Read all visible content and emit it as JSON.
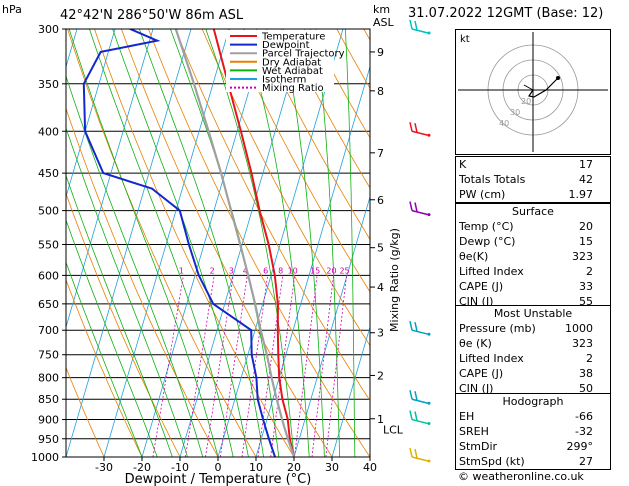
{
  "header": {
    "location": "42°42'N  286°50'W  86m  ASL",
    "datetime": "31.07.2022  12GMT  (Base: 12)",
    "hpa_unit": "hPa",
    "km_unit": "km",
    "asl_unit": "ASL"
  },
  "credit": "© weatheronline.co.uk",
  "hodograph": {
    "label": "kt",
    "ring_labels": [
      "20",
      "30",
      "40"
    ]
  },
  "indices": {
    "rows": [
      {
        "k": "K",
        "v": "17"
      },
      {
        "k": "Totals Totals",
        "v": "42"
      },
      {
        "k": "PW (cm)",
        "v": "1.97"
      }
    ]
  },
  "surface": {
    "title": "Surface",
    "rows": [
      {
        "k": "Temp (°C)",
        "v": "20"
      },
      {
        "k": "Dewp (°C)",
        "v": "15"
      },
      {
        "k": "θe(K)",
        "v": "323"
      },
      {
        "k": "Lifted Index",
        "v": "2"
      },
      {
        "k": "CAPE (J)",
        "v": "33"
      },
      {
        "k": "CIN (J)",
        "v": "55"
      }
    ]
  },
  "most_unstable": {
    "title": "Most Unstable",
    "rows": [
      {
        "k": "Pressure (mb)",
        "v": "1000"
      },
      {
        "k": "θe (K)",
        "v": "323"
      },
      {
        "k": "Lifted Index",
        "v": "2"
      },
      {
        "k": "CAPE (J)",
        "v": "38"
      },
      {
        "k": "CIN (J)",
        "v": "50"
      }
    ]
  },
  "hodograph_table": {
    "title": "Hodograph",
    "rows": [
      {
        "k": "EH",
        "v": "-66"
      },
      {
        "k": "SREH",
        "v": "-32"
      },
      {
        "k": "StmDir",
        "v": "299°"
      },
      {
        "k": "StmSpd (kt)",
        "v": "27"
      }
    ]
  },
  "chart_data": {
    "type": "line",
    "title": "",
    "xlabel": "Dewpoint / Temperature (°C)",
    "ylabel": "",
    "right_axis_label": "Mixing Ratio (g/kg)",
    "xlim": [
      -40,
      40
    ],
    "x_ticks": [
      -30,
      -20,
      -10,
      0,
      10,
      20,
      30,
      40
    ],
    "pressure_levels": [
      300,
      350,
      400,
      450,
      500,
      550,
      600,
      650,
      700,
      750,
      800,
      850,
      900,
      950,
      1000
    ],
    "km_ticks": [
      {
        "km": "9",
        "p": 320
      },
      {
        "km": "8",
        "p": 357
      },
      {
        "km": "7",
        "p": 425
      },
      {
        "km": "6",
        "p": 485
      },
      {
        "km": "5",
        "p": 555
      },
      {
        "km": "4",
        "p": 620
      },
      {
        "km": "3",
        "p": 705
      },
      {
        "km": "2",
        "p": 795
      },
      {
        "km": "1",
        "p": 898
      }
    ],
    "lcl_label": "LCL",
    "lcl_p": 925,
    "mixing_ratio_labels": [
      "1",
      "2",
      "3",
      "4",
      "6",
      "8",
      "10",
      "15",
      "20",
      "25"
    ],
    "legend": [
      {
        "name": "Temperature",
        "color": "#e8141c"
      },
      {
        "name": "Dewpoint",
        "color": "#1426d0"
      },
      {
        "name": "Parcel Trajectory",
        "color": "#a0a0a0"
      },
      {
        "name": "Dry Adiabat",
        "color": "#e88000"
      },
      {
        "name": "Wet Adiabat",
        "color": "#10b010"
      },
      {
        "name": "Isotherm",
        "color": "#20a0e0"
      },
      {
        "name": "Mixing Ratio",
        "color": "#d000b0"
      }
    ],
    "series": [
      {
        "name": "Temperature",
        "points": [
          [
            1000,
            20
          ],
          [
            950,
            17.5
          ],
          [
            900,
            15.5
          ],
          [
            850,
            12.5
          ],
          [
            800,
            10
          ],
          [
            750,
            8
          ],
          [
            700,
            6
          ],
          [
            650,
            4
          ],
          [
            600,
            1
          ],
          [
            550,
            -3
          ],
          [
            500,
            -8
          ],
          [
            450,
            -13
          ],
          [
            400,
            -19
          ],
          [
            350,
            -26
          ],
          [
            300,
            -34
          ]
        ]
      },
      {
        "name": "Dewpoint",
        "points": [
          [
            1000,
            15
          ],
          [
            950,
            12
          ],
          [
            900,
            9
          ],
          [
            850,
            6
          ],
          [
            800,
            4
          ],
          [
            750,
            1
          ],
          [
            700,
            -1
          ],
          [
            650,
            -13
          ],
          [
            600,
            -19
          ],
          [
            550,
            -24
          ],
          [
            500,
            -29
          ],
          [
            470,
            -38
          ],
          [
            450,
            -52
          ],
          [
            400,
            -60
          ],
          [
            350,
            -64
          ],
          [
            320,
            -62
          ],
          [
            310,
            -48
          ],
          [
            300,
            -56
          ]
        ]
      },
      {
        "name": "Parcel Trajectory",
        "points": [
          [
            1000,
            20
          ],
          [
            950,
            17
          ],
          [
            925,
            15.5
          ],
          [
            900,
            14
          ],
          [
            850,
            11
          ],
          [
            800,
            8
          ],
          [
            750,
            5
          ],
          [
            700,
            1.5
          ],
          [
            650,
            -2
          ],
          [
            600,
            -6
          ],
          [
            550,
            -10.5
          ],
          [
            500,
            -15.5
          ],
          [
            450,
            -21
          ],
          [
            400,
            -27.5
          ],
          [
            350,
            -35
          ],
          [
            300,
            -44
          ]
        ]
      }
    ]
  }
}
